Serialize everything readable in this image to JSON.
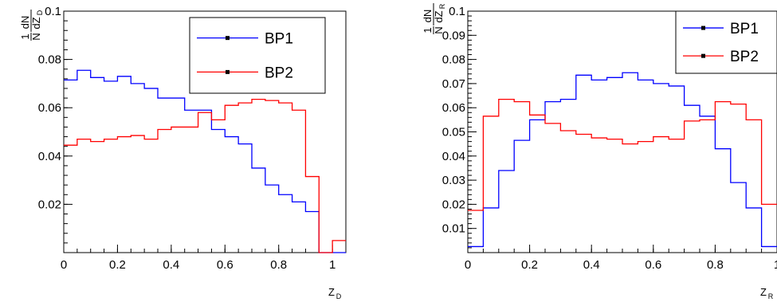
{
  "chart_data": [
    {
      "type": "line",
      "xlabel": "Z",
      "xlabel_sub": "D",
      "ylabel_num": "1 dN",
      "ylabel_den": "N dZ",
      "ylabel_sub": "D",
      "xlim": [
        0,
        1.05
      ],
      "ylim": [
        0,
        0.1
      ],
      "x_ticks": [
        0,
        0.2,
        0.4,
        0.6,
        0.8,
        1
      ],
      "x_tick_labels": [
        "0",
        "0.2",
        "0.4",
        "0.6",
        "0.8",
        "1"
      ],
      "y_ticks": [
        0.02,
        0.04,
        0.06,
        0.08,
        0.1
      ],
      "y_tick_labels": [
        "0.02",
        "0.04",
        "0.06",
        "0.08",
        "0.1"
      ],
      "legend_position": "top-right",
      "bin_edges": [
        0,
        0.05,
        0.1,
        0.15,
        0.2,
        0.25,
        0.3,
        0.35,
        0.4,
        0.45,
        0.5,
        0.55,
        0.6,
        0.65,
        0.7,
        0.75,
        0.8,
        0.85,
        0.9,
        0.95,
        1.0,
        1.05
      ],
      "series": [
        {
          "name": "BP1",
          "color": "#0000ff",
          "values": [
            0.0715,
            0.0755,
            0.0725,
            0.071,
            0.073,
            0.07,
            0.068,
            0.064,
            0.064,
            0.059,
            0.059,
            0.051,
            0.048,
            0.045,
            0.035,
            0.028,
            0.024,
            0.021,
            0.017,
            0.0,
            0.0
          ]
        },
        {
          "name": "BP2",
          "color": "#ff0000",
          "values": [
            0.0445,
            0.047,
            0.046,
            0.047,
            0.048,
            0.0485,
            0.047,
            0.051,
            0.052,
            0.052,
            0.058,
            0.055,
            0.061,
            0.062,
            0.0635,
            0.063,
            0.062,
            0.059,
            0.0315,
            0.0,
            0.005
          ]
        }
      ]
    },
    {
      "type": "line",
      "xlabel": "Z",
      "xlabel_sub": "R",
      "ylabel_num": "1 dN",
      "ylabel_den": "N dZ",
      "ylabel_sub": "R",
      "xlim": [
        0,
        1.0
      ],
      "ylim": [
        0,
        0.1
      ],
      "x_ticks": [
        0,
        0.2,
        0.4,
        0.6,
        0.8,
        1
      ],
      "x_tick_labels": [
        "0",
        "0.2",
        "0.4",
        "0.6",
        "0.8",
        "1"
      ],
      "y_ticks": [
        0.01,
        0.02,
        0.03,
        0.04,
        0.05,
        0.06,
        0.07,
        0.08,
        0.09,
        0.1
      ],
      "y_tick_labels": [
        "0.01",
        "0.02",
        "0.03",
        "0.04",
        "0.05",
        "0.06",
        "0.07",
        "0.08",
        "0.09",
        "0.1"
      ],
      "legend_position": "top-right",
      "bin_edges": [
        0,
        0.05,
        0.1,
        0.15,
        0.2,
        0.25,
        0.3,
        0.35,
        0.4,
        0.45,
        0.5,
        0.55,
        0.6,
        0.65,
        0.7,
        0.75,
        0.8,
        0.85,
        0.9,
        0.95,
        1.0
      ],
      "series": [
        {
          "name": "BP1",
          "color": "#0000ff",
          "values": [
            0.0025,
            0.0185,
            0.034,
            0.0465,
            0.055,
            0.0625,
            0.0635,
            0.0735,
            0.0715,
            0.0725,
            0.0745,
            0.0715,
            0.07,
            0.069,
            0.061,
            0.0565,
            0.043,
            0.029,
            0.0185,
            0.0025
          ]
        },
        {
          "name": "BP2",
          "color": "#ff0000",
          "values": [
            0.0175,
            0.0565,
            0.0635,
            0.0625,
            0.057,
            0.0535,
            0.0505,
            0.049,
            0.0475,
            0.047,
            0.045,
            0.046,
            0.048,
            0.047,
            0.0545,
            0.055,
            0.0625,
            0.0615,
            0.055,
            0.02
          ]
        }
      ]
    }
  ]
}
